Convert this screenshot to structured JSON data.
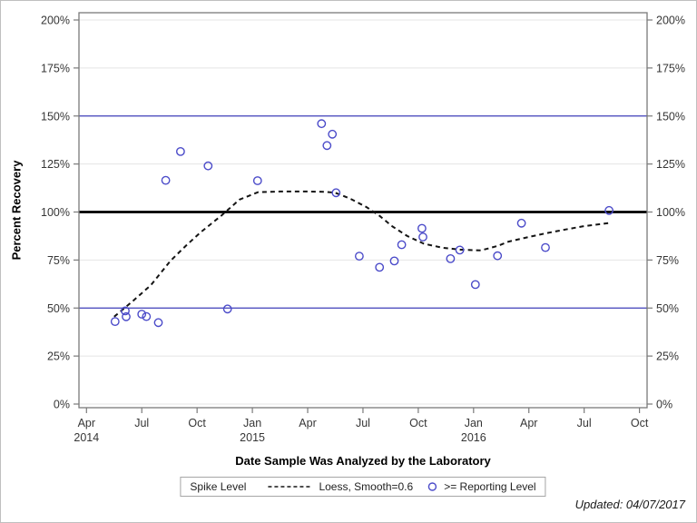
{
  "figure": {
    "updated_note": "Updated: 04/07/2017"
  },
  "legend": {
    "title": "Spike Level",
    "items": [
      {
        "symbol": "dashed-line-icon",
        "label": "Loess, Smooth=0.6"
      },
      {
        "symbol": "open-circle-icon",
        "label": ">= Reporting Level"
      }
    ]
  },
  "colors": {
    "marker": "#4b4bc9",
    "ref_line_blue": "#3d3db8",
    "ref_line_black": "#000000",
    "loess": "#141414",
    "grid": "#e4e4e4",
    "axis": "#7a7a7a",
    "tick_text": "#363636"
  },
  "chart_data": {
    "type": "scatter",
    "xlabel": "Date Sample Was Analyzed by the Laboratory",
    "ylabel": "Percent Recovery",
    "x_unit": "months since April 2014",
    "xlim": [
      0,
      30
    ],
    "ylim": [
      0,
      200
    ],
    "grid": "on",
    "legend_position": "bottom",
    "y_tick_suffix": "%",
    "y_ticks": [
      0,
      25,
      50,
      75,
      100,
      125,
      150,
      175,
      200
    ],
    "y_axis_sides": [
      "left",
      "right"
    ],
    "x_ticks": [
      {
        "m": 0,
        "label": "Apr",
        "year": "2014"
      },
      {
        "m": 3,
        "label": "Jul"
      },
      {
        "m": 6,
        "label": "Oct"
      },
      {
        "m": 9,
        "label": "Jan",
        "year": "2015"
      },
      {
        "m": 12,
        "label": "Apr"
      },
      {
        "m": 15,
        "label": "Jul"
      },
      {
        "m": 18,
        "label": "Oct"
      },
      {
        "m": 21,
        "label": "Jan",
        "year": "2016"
      },
      {
        "m": 24,
        "label": "Apr"
      },
      {
        "m": 27,
        "label": "Jul"
      },
      {
        "m": 30,
        "label": "Oct"
      }
    ],
    "reference_lines": [
      {
        "y": 50,
        "color": "blue",
        "weight": "normal"
      },
      {
        "y": 100,
        "color": "black",
        "weight": "thick"
      },
      {
        "y": 150,
        "color": "blue",
        "weight": "normal"
      }
    ],
    "series": [
      {
        "name": ">= Reporting Level",
        "type": "scatter",
        "points": [
          [
            1.55,
            43
          ],
          [
            2.1,
            48.5
          ],
          [
            2.15,
            45.5
          ],
          [
            3.0,
            46.8
          ],
          [
            3.25,
            45.6
          ],
          [
            3.9,
            42.4
          ],
          [
            4.3,
            116.5
          ],
          [
            5.1,
            131.5
          ],
          [
            6.6,
            124.0
          ],
          [
            7.65,
            49.5
          ],
          [
            9.28,
            116.3
          ],
          [
            12.75,
            146.0
          ],
          [
            13.05,
            134.6
          ],
          [
            13.34,
            140.5
          ],
          [
            13.54,
            110.0
          ],
          [
            14.8,
            77.0
          ],
          [
            15.9,
            71.2
          ],
          [
            16.7,
            74.5
          ],
          [
            17.1,
            83.0
          ],
          [
            18.2,
            91.5
          ],
          [
            18.25,
            87.0
          ],
          [
            19.75,
            75.7
          ],
          [
            20.25,
            80.2
          ],
          [
            21.1,
            62.2
          ],
          [
            22.3,
            77.2
          ],
          [
            23.6,
            94.2
          ],
          [
            24.9,
            81.5
          ],
          [
            28.35,
            100.8
          ]
        ]
      },
      {
        "name": "Loess, Smooth=0.6",
        "type": "line",
        "style": "dashed",
        "points": [
          [
            1.5,
            45.5
          ],
          [
            2.5,
            53.5
          ],
          [
            3.5,
            62.0
          ],
          [
            4.55,
            74.5
          ],
          [
            5.4,
            82.5
          ],
          [
            6.2,
            89.5
          ],
          [
            7.3,
            98.0
          ],
          [
            8.3,
            106.5
          ],
          [
            9.3,
            110.3
          ],
          [
            10.5,
            110.7
          ],
          [
            12.0,
            110.7
          ],
          [
            13.0,
            110.5
          ],
          [
            13.5,
            110.0
          ],
          [
            14.3,
            107.0
          ],
          [
            15.2,
            102.5
          ],
          [
            15.9,
            98.0
          ],
          [
            16.6,
            92.5
          ],
          [
            17.4,
            87.5
          ],
          [
            18.3,
            83.5
          ],
          [
            19.3,
            81.4
          ],
          [
            20.3,
            80.4
          ],
          [
            21.4,
            80.0
          ],
          [
            22.3,
            82.3
          ],
          [
            22.9,
            84.6
          ],
          [
            24.0,
            87.0
          ],
          [
            24.9,
            88.9
          ],
          [
            26.0,
            90.9
          ],
          [
            26.9,
            92.5
          ],
          [
            28.35,
            94.3
          ]
        ]
      }
    ]
  }
}
